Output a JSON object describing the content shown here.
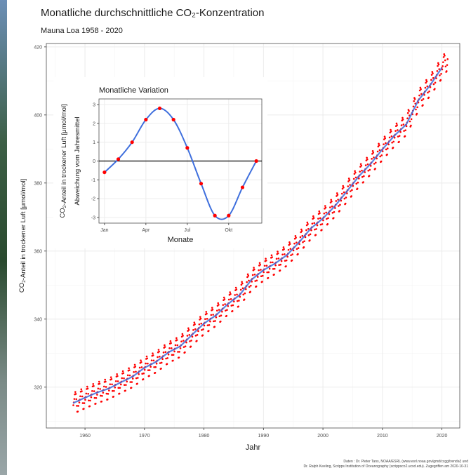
{
  "chart_data": [
    {
      "type": "scatter",
      "title": "Monatliche durchschnittliche CO₂-Konzentration",
      "subtitle": "Mauna Loa 1958 - 2020",
      "xlabel": "Jahr",
      "ylabel": "CO₂-Anteil in trockener Luft [μmol/mol]",
      "xlim": [
        1953.5,
        2023
      ],
      "ylim": [
        308,
        421
      ],
      "xticks": [
        1960,
        1970,
        1980,
        1990,
        2000,
        2010,
        2020
      ],
      "yticks": [
        320,
        340,
        360,
        380,
        400,
        420
      ],
      "grid": true,
      "series": [
        {
          "name": "monthly",
          "x": [
            1958,
            1960,
            1962,
            1964,
            1966,
            1968,
            1970,
            1972,
            1974,
            1976,
            1978,
            1980,
            1982,
            1984,
            1986,
            1988,
            1990,
            1992,
            1994,
            1996,
            1998,
            2000,
            2002,
            2004,
            2006,
            2008,
            2010,
            2012,
            2014,
            2016,
            2018,
            2020
          ],
          "y": [
            315.3,
            316.9,
            318.4,
            319.6,
            321.4,
            323.1,
            325.7,
            327.5,
            330.2,
            332.0,
            335.4,
            338.7,
            341.1,
            344.4,
            347.1,
            351.6,
            354.4,
            356.4,
            358.9,
            362.6,
            366.7,
            369.6,
            373.2,
            377.5,
            381.9,
            385.6,
            389.9,
            393.9,
            397.2,
            404.2,
            408.7,
            413.9
          ]
        },
        {
          "name": "trend",
          "x": [
            1958,
            1960,
            1962,
            1964,
            1966,
            1968,
            1970,
            1972,
            1974,
            1976,
            1978,
            1980,
            1982,
            1984,
            1986,
            1988,
            1990,
            1992,
            1994,
            1996,
            1998,
            2000,
            2002,
            2004,
            2006,
            2008,
            2010,
            2012,
            2014,
            2016,
            2018,
            2020
          ],
          "y": [
            315.3,
            316.9,
            318.4,
            319.6,
            321.4,
            323.1,
            325.7,
            327.5,
            330.2,
            332.0,
            335.4,
            338.7,
            341.1,
            344.4,
            347.1,
            351.6,
            354.4,
            356.4,
            358.9,
            362.6,
            366.7,
            369.6,
            373.2,
            377.5,
            381.9,
            385.6,
            389.9,
            393.9,
            397.2,
            404.2,
            408.7,
            413.9
          ]
        }
      ],
      "seasonal_amplitude": 3.2,
      "colors": {
        "points": "#ff0000",
        "trend": "#3f6fdd",
        "grid": "#ebebeb",
        "border": "#4d4d4d"
      }
    },
    {
      "type": "line",
      "title": "Monatliche Variation",
      "xlabel": "Monate",
      "ylabel": "CO₂-Anteil in trockener Luft [μmol/mol]",
      "ylabel2": "Abweichung vom Jahresmittel",
      "xticks": [
        "Jan",
        "Apr",
        "Jul",
        "Okt"
      ],
      "xtick_positions": [
        1,
        4,
        7,
        10
      ],
      "yticks": [
        -3,
        -2,
        -1,
        0,
        1,
        2,
        3
      ],
      "xlim": [
        0.6,
        12.4
      ],
      "ylim": [
        -3.3,
        3.3
      ],
      "grid": true,
      "months": [
        1,
        2,
        3,
        4,
        5,
        6,
        7,
        8,
        9,
        10,
        11,
        12
      ],
      "values": [
        -0.6,
        0.1,
        1.0,
        2.2,
        2.8,
        2.2,
        0.7,
        -1.2,
        -2.9,
        -2.9,
        -1.4,
        0.0
      ],
      "colors": {
        "points": "#ff0000",
        "line": "#3f6fdd",
        "zero_line": "#000000"
      }
    }
  ],
  "source": {
    "line1": "Daten : Dr. Pieter Tans, NOAA/ESRL (www.esrl.noaa.gov/gmd/ccgg/trends/) und",
    "line2": "Dr. Ralph Keeling, Scripps Institution of Oceanography (scrippsco2.ucsd.edu). Zugegriffen am 2020-10-31"
  }
}
